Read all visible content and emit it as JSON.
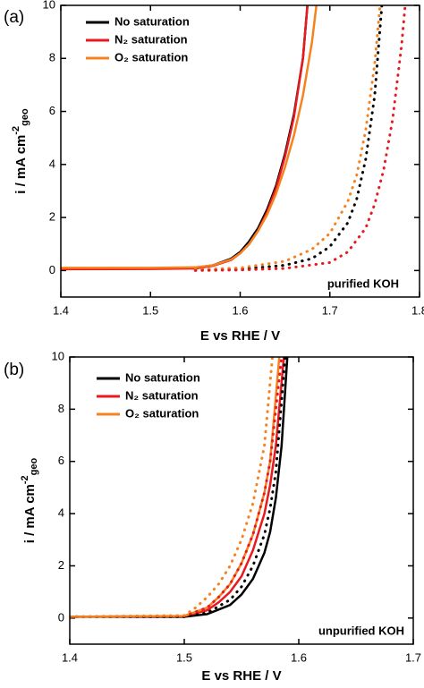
{
  "chart_data": [
    {
      "type": "line",
      "panel_label": "(a)",
      "annotation": "purified KOH",
      "xlabel": "E vs RHE / V",
      "ylabel": [
        "i / mA cm",
        "-2",
        "geo"
      ],
      "xlim": [
        1.4,
        1.8
      ],
      "xticks": [
        1.4,
        1.5,
        1.6,
        1.7,
        1.8
      ],
      "ylim": [
        -1,
        10
      ],
      "yticks": [
        0,
        2,
        4,
        6,
        8,
        10
      ],
      "legend": "upper left",
      "series": [
        {
          "name": "No saturation",
          "color": "#000000",
          "dash": false,
          "x": [
            1.4,
            1.5,
            1.55,
            1.57,
            1.59,
            1.6,
            1.61,
            1.62,
            1.63,
            1.64,
            1.65,
            1.66,
            1.67,
            1.675
          ],
          "values": [
            0.08,
            0.08,
            0.1,
            0.2,
            0.45,
            0.7,
            1.1,
            1.6,
            2.3,
            3.2,
            4.4,
            5.9,
            8.0,
            10
          ]
        },
        {
          "name": "N₂ saturation",
          "color": "#e8191f",
          "dash": false,
          "x": [
            1.4,
            1.5,
            1.55,
            1.57,
            1.59,
            1.6,
            1.61,
            1.62,
            1.63,
            1.64,
            1.65,
            1.66,
            1.67,
            1.675
          ],
          "values": [
            0.05,
            0.06,
            0.08,
            0.18,
            0.4,
            0.65,
            1.0,
            1.5,
            2.2,
            3.1,
            4.3,
            5.8,
            8.0,
            10
          ]
        },
        {
          "name": "O₂ saturation",
          "color": "#f5821f",
          "dash": false,
          "x": [
            1.4,
            1.5,
            1.55,
            1.57,
            1.59,
            1.6,
            1.61,
            1.62,
            1.63,
            1.64,
            1.65,
            1.66,
            1.67,
            1.68,
            1.685
          ],
          "values": [
            0.1,
            0.1,
            0.12,
            0.2,
            0.42,
            0.65,
            1.0,
            1.5,
            2.1,
            2.9,
            3.9,
            5.1,
            6.6,
            8.6,
            10
          ]
        },
        {
          "color": "#000000",
          "dash": true,
          "x": [
            1.55,
            1.6,
            1.65,
            1.68,
            1.7,
            1.72,
            1.73,
            1.74,
            1.75,
            1.758
          ],
          "values": [
            0.02,
            0.05,
            0.2,
            0.45,
            0.9,
            1.8,
            2.7,
            4.2,
            6.6,
            10
          ]
        },
        {
          "color": "#f5821f",
          "dash": true,
          "x": [
            1.55,
            1.6,
            1.65,
            1.68,
            1.7,
            1.72,
            1.73,
            1.74,
            1.75,
            1.756
          ],
          "values": [
            0.03,
            0.1,
            0.35,
            0.8,
            1.4,
            2.6,
            3.6,
            5.3,
            7.8,
            10
          ]
        },
        {
          "color": "#e8191f",
          "dash": true,
          "x": [
            1.55,
            1.6,
            1.65,
            1.7,
            1.72,
            1.74,
            1.75,
            1.76,
            1.77,
            1.78,
            1.784
          ],
          "values": [
            0.0,
            0.02,
            0.08,
            0.3,
            0.7,
            1.6,
            2.5,
            3.8,
            5.7,
            8.5,
            10
          ]
        }
      ]
    },
    {
      "type": "line",
      "panel_label": "(b)",
      "annotation": "unpurified KOH",
      "xlabel": "E vs RHE / V",
      "ylabel": [
        "i / mA cm",
        "-2",
        "geo"
      ],
      "xlim": [
        1.4,
        1.7
      ],
      "xticks": [
        1.4,
        1.5,
        1.6,
        1.7
      ],
      "ylim": [
        -1,
        10
      ],
      "yticks": [
        0,
        2,
        4,
        6,
        8,
        10
      ],
      "legend": "upper left",
      "series": [
        {
          "name": "No saturation",
          "color": "#000000",
          "dash": false,
          "x": [
            1.4,
            1.5,
            1.52,
            1.54,
            1.55,
            1.56,
            1.57,
            1.575,
            1.58,
            1.585,
            1.59
          ],
          "values": [
            0.05,
            0.05,
            0.15,
            0.5,
            0.9,
            1.5,
            2.5,
            3.3,
            4.6,
            6.6,
            10
          ]
        },
        {
          "name": "N₂ saturation",
          "color": "#e8191f",
          "dash": false,
          "x": [
            1.4,
            1.5,
            1.52,
            1.53,
            1.54,
            1.55,
            1.56,
            1.57,
            1.575,
            1.58,
            1.587
          ],
          "values": [
            0.05,
            0.07,
            0.3,
            0.6,
            1.0,
            1.6,
            2.6,
            4.0,
            5.1,
            6.6,
            10
          ]
        },
        {
          "name": "O₂ saturation",
          "color": "#f5821f",
          "dash": false,
          "x": [
            1.4,
            1.5,
            1.52,
            1.53,
            1.54,
            1.55,
            1.56,
            1.57,
            1.575,
            1.583
          ],
          "values": [
            0.05,
            0.08,
            0.4,
            0.8,
            1.3,
            2.1,
            3.2,
            4.8,
            6.0,
            10
          ]
        },
        {
          "color": "#000000",
          "dash": true,
          "x": [
            1.4,
            1.5,
            1.52,
            1.54,
            1.55,
            1.56,
            1.57,
            1.575,
            1.58,
            1.588
          ],
          "values": [
            0.05,
            0.05,
            0.2,
            0.7,
            1.2,
            2.0,
            3.2,
            4.2,
            5.6,
            10
          ]
        },
        {
          "color": "#e8191f",
          "dash": true,
          "x": [
            1.4,
            1.5,
            1.52,
            1.53,
            1.54,
            1.55,
            1.56,
            1.57,
            1.575,
            1.585
          ],
          "values": [
            0.05,
            0.08,
            0.4,
            0.8,
            1.3,
            2.1,
            3.2,
            4.8,
            6.0,
            10
          ]
        },
        {
          "color": "#f5821f",
          "dash": true,
          "x": [
            1.4,
            1.5,
            1.51,
            1.52,
            1.53,
            1.54,
            1.55,
            1.56,
            1.57,
            1.577
          ],
          "values": [
            0.05,
            0.1,
            0.4,
            0.8,
            1.3,
            2.0,
            3.0,
            4.4,
            6.6,
            10
          ]
        }
      ]
    }
  ]
}
